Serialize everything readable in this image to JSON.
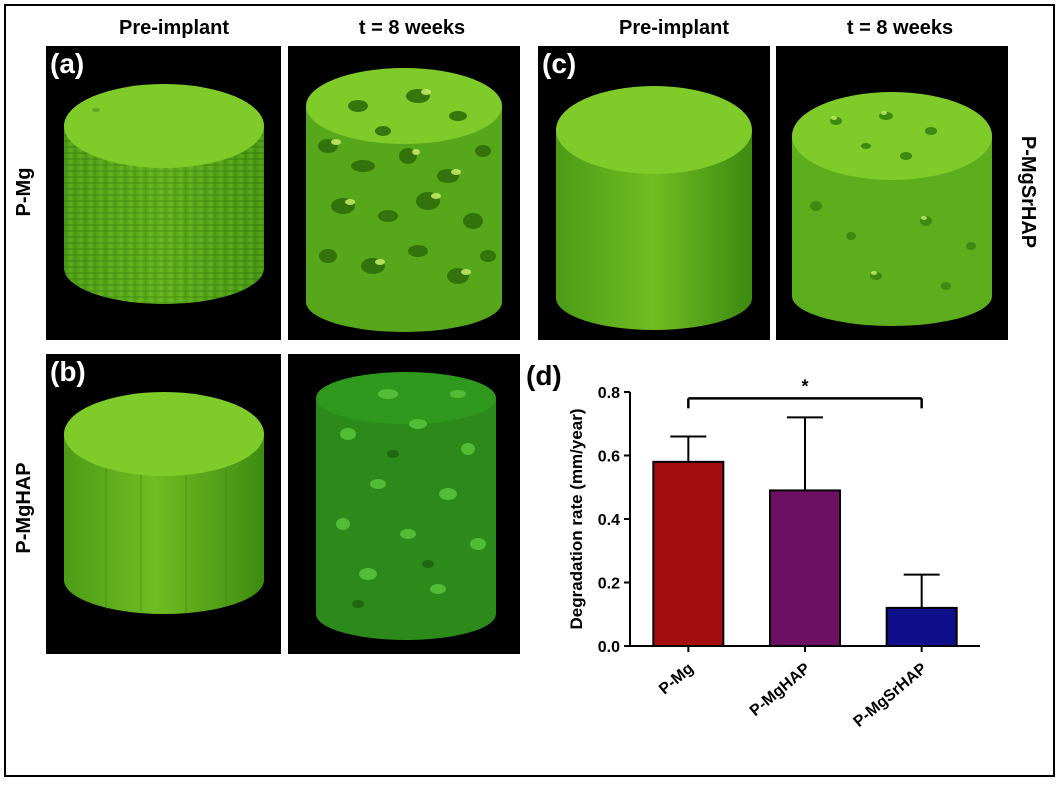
{
  "column_headers": {
    "left_pre": "Pre-implant",
    "left_post": "t = 8 weeks",
    "right_pre": "Pre-implant",
    "right_post": "t = 8 weeks"
  },
  "row_labels": {
    "a": "P-Mg",
    "b": "P-MgHAP",
    "c": "P-MgSrHAP"
  },
  "panel_labels": {
    "a": "(a)",
    "b": "(b)",
    "c": "(c)",
    "d": "(d)"
  },
  "colors": {
    "cylinder_light": "#7ecb2a",
    "cylinder_dark": "#3f8d12",
    "cylinder_dark_green": "#2f8f1c",
    "bar_pmg": "#a30d0d",
    "bar_pmghap": "#6d0f62",
    "bar_pmgsrhap": "#0f0f8c"
  },
  "chart_data": {
    "type": "bar",
    "title": "",
    "xlabel": "",
    "ylabel": "Degradation rate (mm/year)",
    "categories": [
      "P-Mg",
      "P-MgHAP",
      "P-MgSrHAP"
    ],
    "values": [
      0.58,
      0.49,
      0.12
    ],
    "errors": [
      0.08,
      0.23,
      0.105
    ],
    "ylim": [
      0,
      0.8
    ],
    "yticks": [
      "0.0",
      "0.2",
      "0.4",
      "0.6",
      "0.8"
    ],
    "ytick_values": [
      0,
      0.2,
      0.4,
      0.6,
      0.8
    ],
    "significance": {
      "from": "P-Mg",
      "to": "P-MgSrHAP",
      "y": 0.78,
      "label": "*"
    },
    "grid": false
  }
}
